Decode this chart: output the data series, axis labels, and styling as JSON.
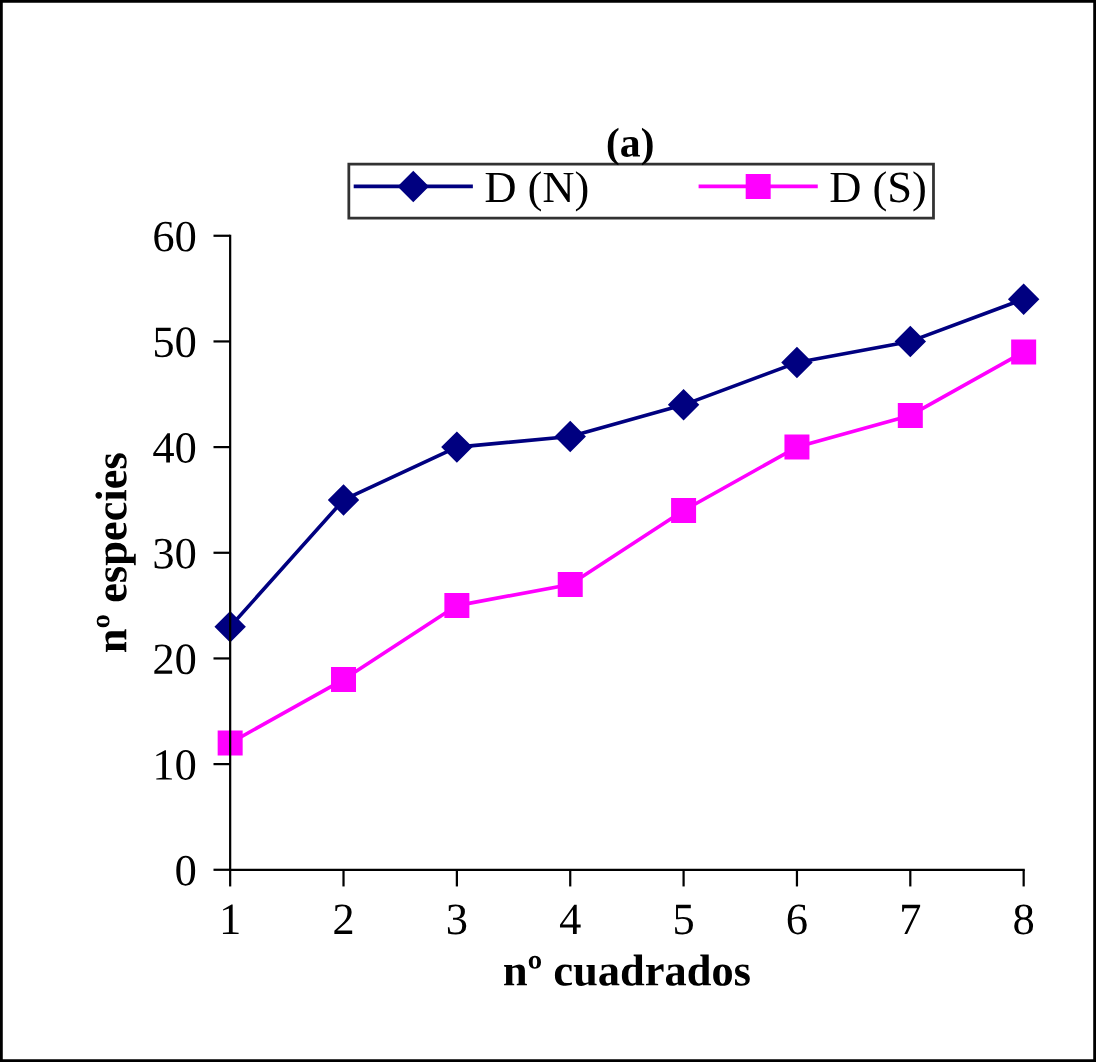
{
  "chart_data": {
    "type": "line",
    "title": "(a)",
    "xlabel": "nº cuadrados",
    "ylabel": "nº especies",
    "x": [
      1,
      2,
      3,
      4,
      5,
      6,
      7,
      8
    ],
    "series": [
      {
        "name": "D (N)",
        "color": "#000080",
        "marker": "diamond",
        "values": [
          23,
          35,
          40,
          41,
          44,
          48,
          50,
          54
        ]
      },
      {
        "name": "D (S)",
        "color": "#ff00ff",
        "marker": "square",
        "values": [
          12,
          18,
          25,
          27,
          34,
          40,
          43,
          49
        ]
      }
    ],
    "xlim": [
      1,
      8
    ],
    "xticks": [
      1,
      2,
      3,
      4,
      5,
      6,
      7,
      8
    ],
    "ylim": [
      0,
      60
    ],
    "yticks": [
      0,
      10,
      20,
      30,
      40,
      50,
      60
    ],
    "grid": false,
    "legend": "top",
    "line_style": "solid"
  }
}
